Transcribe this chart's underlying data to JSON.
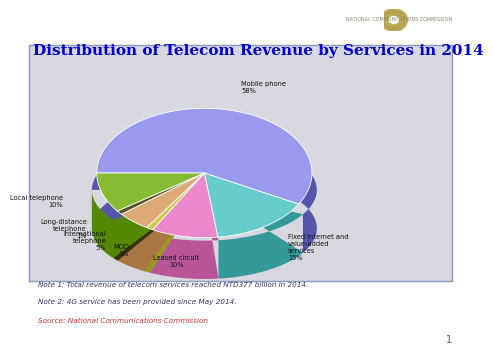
{
  "title": "Distribution of Telecom Revenue by Services in 2014",
  "title_color": "#0000CC",
  "slices": [
    {
      "label": "Mobile phone\n58%",
      "value": 58,
      "color": "#9999EE",
      "dark_color": "#5555AA"
    },
    {
      "label": "Fixed Internet and\nvalue-added\nservices\n15%",
      "value": 15,
      "color": "#66CCCC",
      "dark_color": "#339999"
    },
    {
      "label": "Leased circuit\n10%",
      "value": 10,
      "color": "#EE88CC",
      "dark_color": "#BB5599"
    },
    {
      "label": "MOD\n1%",
      "value": 1,
      "color": "#CCCC44",
      "dark_color": "#999922"
    },
    {
      "label": "International\ntelephone\n5%",
      "value": 5,
      "color": "#DDAA77",
      "dark_color": "#AA7744"
    },
    {
      "label": "Long-distance\ntelephone\n1%",
      "value": 1,
      "color": "#555522",
      "dark_color": "#333311"
    },
    {
      "label": "Local telephone\n10%",
      "value": 10,
      "color": "#88BB33",
      "dark_color": "#558800"
    }
  ],
  "startangle": 180,
  "note1": "Note 1: Total revenue of telecom services reached NTD377 billion in 2014.",
  "note2": "Note 2: 4G service has been provided since May 2014.",
  "source": "Source: National Communications Commission",
  "note_color": "#333366",
  "source_color": "#CC3333",
  "chart_bg": "#D8D8E0",
  "chart_border": "#8899BB",
  "page_num": "1"
}
